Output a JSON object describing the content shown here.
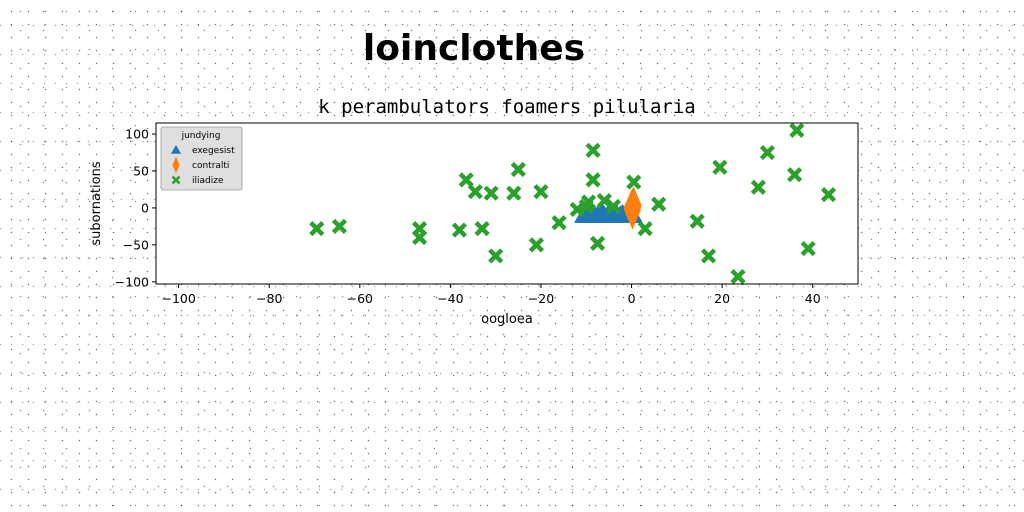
{
  "chart_data": {
    "type": "scatter",
    "suptitle": "loinclothes",
    "title": "k perambulators foamers pilularia",
    "xlabel": "oogloea",
    "ylabel": "subornations",
    "xlim": [
      -105,
      50
    ],
    "ylim": [
      -103,
      115
    ],
    "xticks": [
      -100,
      -80,
      -60,
      -40,
      -20,
      0,
      20,
      40
    ],
    "yticks": [
      -100,
      -50,
      0,
      50,
      100
    ],
    "xtick_labels": [
      "−100",
      "−80",
      "−60",
      "−40",
      "−20",
      "0",
      "20",
      "40"
    ],
    "ytick_labels": [
      "−100",
      "−50",
      "0",
      "50",
      "100"
    ],
    "grid": false,
    "legend": {
      "title": "jundying",
      "placement": "top-left"
    },
    "series": [
      {
        "name": "exegesist",
        "marker": "triangle",
        "color": "#1f77b4",
        "points": [
          [
            -10.5,
            -10
          ],
          [
            -9.8,
            -10
          ],
          [
            -9,
            -10
          ],
          [
            -8.2,
            -10
          ],
          [
            -7.5,
            -10
          ],
          [
            -6.8,
            -10
          ],
          [
            -6,
            -10
          ],
          [
            -5.3,
            -10
          ],
          [
            -4.6,
            -10
          ],
          [
            -3.9,
            -10
          ],
          [
            -3.2,
            -10
          ],
          [
            -2.5,
            -10
          ],
          [
            -1.8,
            -10
          ],
          [
            -1.1,
            -10
          ],
          [
            -0.4,
            -10
          ],
          [
            0.3,
            -10
          ],
          [
            -8.6,
            -8
          ],
          [
            -5,
            -8
          ],
          [
            -2,
            -8
          ],
          [
            -6.5,
            -6
          ],
          [
            -3.5,
            -6
          ],
          [
            -9.5,
            -7
          ],
          [
            -0.8,
            -7
          ]
        ]
      },
      {
        "name": "contralti",
        "marker": "thin_diamond",
        "color": "#ff7f0e",
        "points": [
          [
            0.2,
            -3
          ],
          [
            0.4,
            3
          ],
          [
            0.1,
            0
          ]
        ]
      },
      {
        "name": "iliadize",
        "marker": "x",
        "color": "#2ca02c",
        "points": [
          [
            -69.5,
            -28
          ],
          [
            -64.5,
            -25
          ],
          [
            -46.8,
            -28
          ],
          [
            -46.8,
            -40
          ],
          [
            -38,
            -30
          ],
          [
            -36.5,
            38
          ],
          [
            -34.5,
            22
          ],
          [
            -33,
            -28
          ],
          [
            -31,
            20
          ],
          [
            -30,
            -65
          ],
          [
            -26,
            20
          ],
          [
            -25,
            52
          ],
          [
            -21,
            -50
          ],
          [
            -20,
            22
          ],
          [
            -16,
            -20
          ],
          [
            -12,
            -2
          ],
          [
            -10,
            2
          ],
          [
            -9.5,
            8
          ],
          [
            -8.5,
            38
          ],
          [
            -8.5,
            78
          ],
          [
            -7.5,
            -48
          ],
          [
            -6,
            10
          ],
          [
            -4,
            2
          ],
          [
            0.5,
            35
          ],
          [
            3,
            -28
          ],
          [
            6,
            5
          ],
          [
            14.5,
            -18
          ],
          [
            17,
            -65
          ],
          [
            19.5,
            55
          ],
          [
            23.5,
            -93
          ],
          [
            28,
            28
          ],
          [
            30,
            75
          ],
          [
            36,
            45
          ],
          [
            36.5,
            105
          ],
          [
            39,
            -55
          ],
          [
            43.5,
            18
          ]
        ]
      }
    ]
  }
}
